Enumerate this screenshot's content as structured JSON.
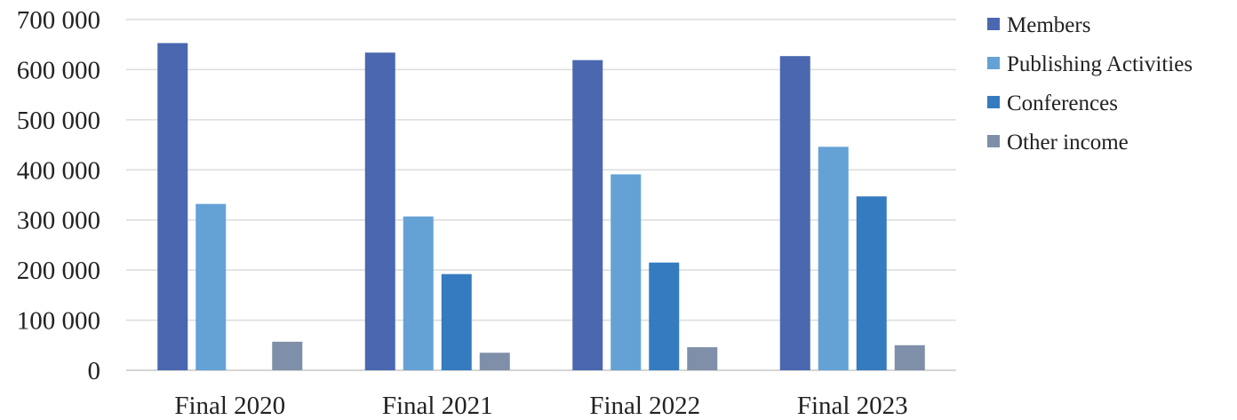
{
  "chart_data": {
    "type": "bar",
    "title": "",
    "xlabel": "",
    "ylabel": "",
    "categories": [
      "Final 2020",
      "Final 2021",
      "Final 2022",
      "Final 2023"
    ],
    "series": [
      {
        "name": "Members",
        "color": "#4A67B0",
        "values": [
          653000,
          634000,
          619000,
          627000
        ]
      },
      {
        "name": "Publishing Activities",
        "color": "#64A2D5",
        "values": [
          332000,
          307000,
          391000,
          446000
        ]
      },
      {
        "name": "Conferences",
        "color": "#357BC0",
        "values": [
          0,
          192000,
          215000,
          347000
        ]
      },
      {
        "name": "Other income",
        "color": "#7F8FA9",
        "values": [
          57000,
          35000,
          46000,
          50000
        ]
      }
    ],
    "ylim": [
      0,
      700000
    ],
    "yticks": [
      0,
      100000,
      200000,
      300000,
      400000,
      500000,
      600000,
      700000
    ],
    "ytick_labels": [
      "0",
      "100 000",
      "200 000",
      "300 000",
      "400 000",
      "500 000",
      "600 000",
      "700 000"
    ],
    "grid": true,
    "legend_position": "right"
  }
}
